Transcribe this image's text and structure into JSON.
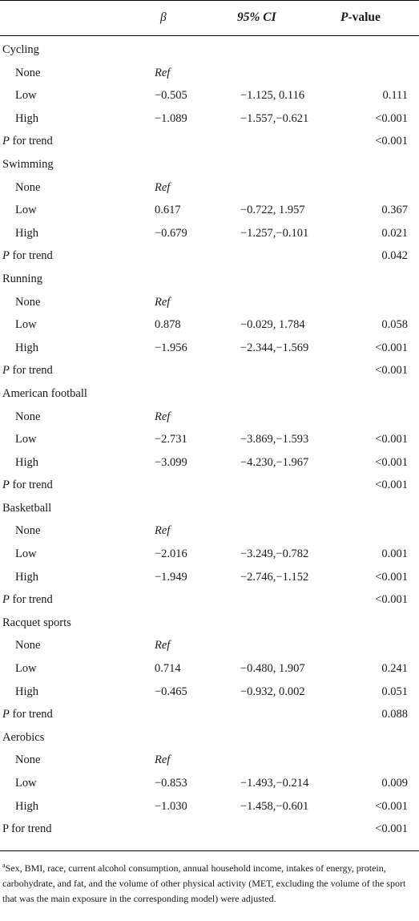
{
  "header": {
    "beta": "β",
    "ci": "95% CI",
    "p_italic": "P",
    "p_rest": "-value"
  },
  "rows": [
    {
      "kind": "group",
      "label": "Cycling"
    },
    {
      "kind": "sub",
      "label": "None",
      "beta": "Ref",
      "ref": true,
      "ci": "",
      "p": ""
    },
    {
      "kind": "sub",
      "label": "Low",
      "beta": "−0.505",
      "ci": "−1.125, 0.116",
      "p": "0.111"
    },
    {
      "kind": "sub",
      "label": "High",
      "beta": "−1.089",
      "ci": "−1.557,−0.621",
      "p": "<0.001"
    },
    {
      "kind": "trend",
      "p_italic": "P",
      "label_rest": " for trend",
      "p": "<0.001"
    },
    {
      "kind": "group",
      "label": "Swimming"
    },
    {
      "kind": "sub",
      "label": "None",
      "beta": "Ref",
      "ref": true,
      "ci": "",
      "p": ""
    },
    {
      "kind": "sub",
      "label": "Low",
      "beta": "0.617",
      "ci": "−0.722, 1.957",
      "p": "0.367"
    },
    {
      "kind": "sub",
      "label": "High",
      "beta": "−0.679",
      "ci": "−1.257,−0.101",
      "p": "0.021"
    },
    {
      "kind": "trend",
      "p_italic": "P",
      "label_rest": " for trend",
      "p": "0.042"
    },
    {
      "kind": "group",
      "label": "Running"
    },
    {
      "kind": "sub",
      "label": "None",
      "beta": "Ref",
      "ref": true,
      "ci": "",
      "p": ""
    },
    {
      "kind": "sub",
      "label": "Low",
      "beta": "0.878",
      "ci": "−0.029, 1.784",
      "p": "0.058"
    },
    {
      "kind": "sub",
      "label": "High",
      "beta": "−1.956",
      "ci": "−2.344,−1.569",
      "p": "<0.001"
    },
    {
      "kind": "trend",
      "p_italic": "P",
      "label_rest": " for trend",
      "p": "<0.001"
    },
    {
      "kind": "group",
      "label": "American football"
    },
    {
      "kind": "sub",
      "label": "None",
      "beta": "Ref",
      "ref": true,
      "ci": "",
      "p": ""
    },
    {
      "kind": "sub",
      "label": "Low",
      "beta": "−2.731",
      "ci": "−3.869,−1.593",
      "p": "<0.001"
    },
    {
      "kind": "sub",
      "label": "High",
      "beta": "−3.099",
      "ci": "−4.230,−1.967",
      "p": "<0.001"
    },
    {
      "kind": "trend",
      "p_italic": "P",
      "label_rest": " for trend",
      "p": "<0.001"
    },
    {
      "kind": "group",
      "label": "Basketball"
    },
    {
      "kind": "sub",
      "label": "None",
      "beta": "Ref",
      "ref": true,
      "ci": "",
      "p": ""
    },
    {
      "kind": "sub",
      "label": "Low",
      "beta": "−2.016",
      "ci": "−3.249,−0.782",
      "p": "0.001"
    },
    {
      "kind": "sub",
      "label": "High",
      "beta": "−1.949",
      "ci": "−2.746,−1.152",
      "p": "<0.001"
    },
    {
      "kind": "trend",
      "p_italic": "P",
      "label_rest": " for trend",
      "p": "<0.001"
    },
    {
      "kind": "group",
      "label": "Racquet sports"
    },
    {
      "kind": "sub",
      "label": "None",
      "beta": "Ref",
      "ref": true,
      "ci": "",
      "p": ""
    },
    {
      "kind": "sub",
      "label": "Low",
      "beta": "0.714",
      "ci": "−0.480, 1.907",
      "p": "0.241"
    },
    {
      "kind": "sub",
      "label": "High",
      "beta": "−0.465",
      "ci": "−0.932, 0.002",
      "p": "0.051"
    },
    {
      "kind": "trend",
      "p_italic": "P",
      "label_rest": " for trend",
      "p": "0.088"
    },
    {
      "kind": "group",
      "label": "Aerobics"
    },
    {
      "kind": "sub",
      "label": "None",
      "beta": "Ref",
      "ref": true,
      "ci": "",
      "p": ""
    },
    {
      "kind": "sub",
      "label": "Low",
      "beta": "−0.853",
      "ci": "−1.493,−0.214",
      "p": "0.009"
    },
    {
      "kind": "sub",
      "label": "High",
      "beta": "−1.030",
      "ci": "−1.458,−0.601",
      "p": "<0.001"
    },
    {
      "kind": "trend",
      "p_italic": "",
      "label_rest": "P for trend",
      "p": "<0.001"
    }
  ],
  "footnote": {
    "mark": "a",
    "text": "Sex, BMI, race, current alcohol consumption, annual household income, intakes of energy, protein, carbohydrate, and fat, and the volume of other physical activity (MET, excluding the volume of the sport that was the main exposure in the corresponding model) were adjusted."
  }
}
